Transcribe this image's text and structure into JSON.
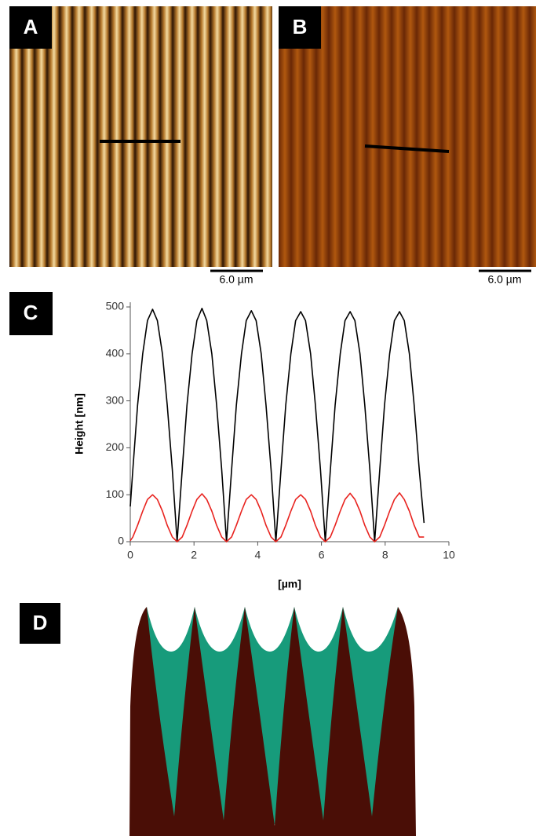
{
  "panels": {
    "a": {
      "label": "A",
      "scale_bar": "6.0 µm"
    },
    "b": {
      "label": "B",
      "scale_bar": "6.0 µm"
    },
    "c": {
      "label": "C"
    },
    "d": {
      "label": "D"
    }
  },
  "chart_data": {
    "type": "line",
    "x_label": "[µm]",
    "y_label": "Height [nm]",
    "x": [
      0,
      0.08,
      0.23,
      0.39,
      0.54,
      0.7,
      0.85,
      1.01,
      1.16,
      1.32,
      1.47,
      1.63,
      1.78,
      1.94,
      2.09,
      2.25,
      2.4,
      2.56,
      2.71,
      2.87,
      3.02,
      3.18,
      3.33,
      3.49,
      3.64,
      3.8,
      3.95,
      4.11,
      4.26,
      4.42,
      4.57,
      4.73,
      4.88,
      5.04,
      5.19,
      5.35,
      5.5,
      5.66,
      5.81,
      5.97,
      6.12,
      6.28,
      6.43,
      6.59,
      6.74,
      6.9,
      7.05,
      7.21,
      7.36,
      7.52,
      7.67,
      7.83,
      7.98,
      8.14,
      8.29,
      8.45,
      8.6,
      8.76,
      8.91,
      9.07,
      9.22
    ],
    "series": [
      {
        "color": "#000000",
        "values": [
          75,
          153,
          291,
          400,
          471,
          495,
          471,
          400,
          291,
          153,
          0,
          153,
          291,
          400,
          471,
          497,
          471,
          400,
          291,
          153,
          0,
          153,
          291,
          400,
          471,
          492,
          471,
          400,
          291,
          153,
          0,
          153,
          291,
          400,
          471,
          490,
          471,
          400,
          291,
          153,
          0,
          153,
          291,
          400,
          471,
          490,
          471,
          400,
          291,
          153,
          0,
          153,
          291,
          400,
          471,
          490,
          471,
          400,
          291,
          153,
          40
        ]
      },
      {
        "color": "#e8231f",
        "values": [
          2,
          10,
          35,
          65,
          90,
          100,
          90,
          65,
          35,
          10,
          0,
          10,
          35,
          65,
          90,
          102,
          90,
          65,
          35,
          10,
          0,
          10,
          35,
          65,
          90,
          100,
          90,
          65,
          35,
          10,
          0,
          10,
          35,
          65,
          90,
          100,
          90,
          65,
          35,
          10,
          0,
          10,
          35,
          65,
          90,
          103,
          90,
          65,
          35,
          10,
          0,
          10,
          35,
          65,
          90,
          104,
          90,
          65,
          35,
          10,
          10
        ]
      }
    ],
    "xlim": [
      0,
      10
    ],
    "xticks": [
      0,
      2,
      4,
      6,
      8,
      10
    ],
    "ylim": [
      0,
      500
    ],
    "yticks": [
      0,
      100,
      200,
      300,
      400,
      500
    ]
  }
}
